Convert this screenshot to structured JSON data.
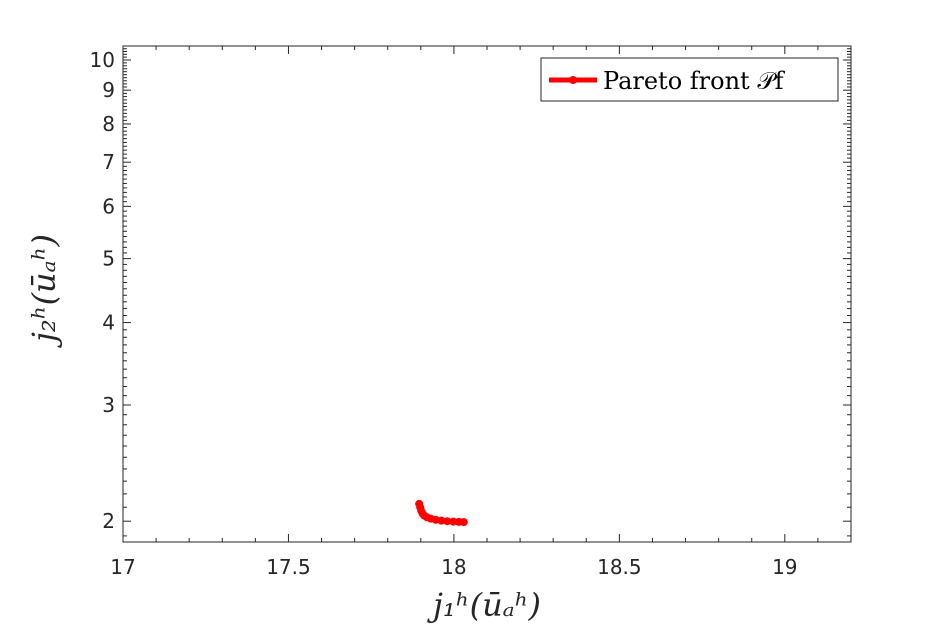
{
  "chart_data": {
    "type": "line",
    "xlabel": "j₁ʰ(ūₐʰ)",
    "ylabel": "j₂ʰ(ūₐʰ)",
    "xlim": [
      17,
      19.2
    ],
    "ylim": [
      1.86,
      10.5
    ],
    "yscale": "log",
    "xticks": [
      17,
      17.5,
      18,
      18.5,
      19
    ],
    "xtick_labels": [
      "17",
      "17.5",
      "18",
      "18.5",
      "19"
    ],
    "yticks": [
      2,
      3,
      4,
      5,
      6,
      7,
      8,
      9,
      10
    ],
    "ytick_labels": [
      "2",
      "3",
      "4",
      "5",
      "6",
      "7",
      "8",
      "9",
      "10"
    ],
    "grid": false,
    "legend": {
      "position": "top-right",
      "entries": [
        "Pareto front 𝒫f"
      ]
    },
    "series": [
      {
        "name": "Pareto front 𝒫f",
        "color": "#ff0000",
        "x": [
          17.895,
          17.898,
          17.901,
          17.905,
          17.91,
          17.918,
          17.93,
          17.945,
          17.962,
          17.98,
          17.998,
          18.015,
          18.03
        ],
        "y": [
          2.125,
          2.1,
          2.075,
          2.055,
          2.04,
          2.028,
          2.018,
          2.01,
          2.004,
          2.0,
          1.997,
          1.995,
          1.994
        ]
      }
    ]
  }
}
